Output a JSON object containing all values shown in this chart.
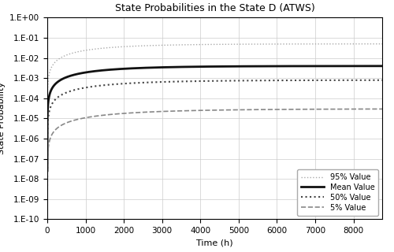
{
  "title": "State Probabilities in the State D (ATWS)",
  "xlabel": "Time (h)",
  "ylabel": "State Probability",
  "xlim": [
    0,
    8750
  ],
  "xticks": [
    0,
    1000,
    2000,
    3000,
    4000,
    5000,
    6000,
    7000,
    8000
  ],
  "yticks_exp": [
    0,
    -1,
    -2,
    -3,
    -4,
    -5,
    -6,
    -7,
    -8,
    -9,
    -10
  ],
  "series": [
    {
      "key": "p95",
      "label": "95% Value",
      "linestyle": "dotted",
      "color": "#aaaaaa",
      "linewidth": 1.0,
      "asymptote": 0.05,
      "rate": 0.00065,
      "start_val": 1e-10
    },
    {
      "key": "mean",
      "label": "Mean Value",
      "linestyle": "solid",
      "color": "#111111",
      "linewidth": 2.0,
      "asymptote": 0.004,
      "rate": 0.00065,
      "start_val": 1e-10
    },
    {
      "key": "p50",
      "label": "50% Value",
      "linestyle": "dotted",
      "color": "#444444",
      "linewidth": 1.5,
      "asymptote": 0.0008,
      "rate": 0.00055,
      "start_val": 1e-10
    },
    {
      "key": "p5",
      "label": "5% Value",
      "linestyle": "dashed",
      "color": "#888888",
      "linewidth": 1.2,
      "asymptote": 3e-05,
      "rate": 0.00045,
      "start_val": 1e-10
    }
  ],
  "grid_color": "#cccccc",
  "background_color": "#ffffff",
  "title_fontsize": 9,
  "label_fontsize": 8,
  "tick_fontsize": 7.5
}
